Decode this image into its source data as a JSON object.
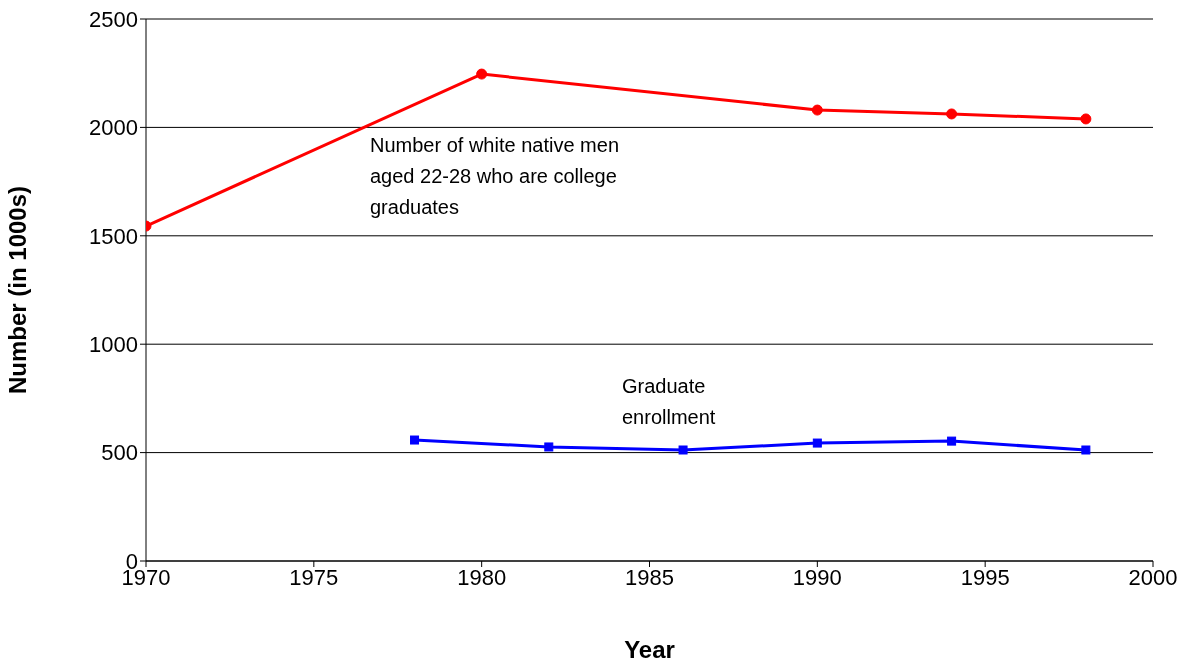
{
  "chart_data": {
    "type": "line",
    "xlabel": "Year",
    "ylabel": "Number (in 1000s)",
    "xlim": [
      1970,
      2000
    ],
    "xticks": [
      1970,
      1975,
      1980,
      1985,
      1990,
      1995,
      2000
    ],
    "ylim": [
      0,
      2500
    ],
    "yticks": [
      0,
      500,
      1000,
      1500,
      2000,
      2500
    ],
    "grid": "y",
    "line_style": "solid",
    "series": [
      {
        "name": "Number of white native men aged 22-28 who are college graduates",
        "color": "#ff0000",
        "marker": "circle",
        "x": [
          1970,
          1980,
          1990,
          1994,
          1998
        ],
        "values": [
          1545,
          2246,
          2080,
          2062,
          2039
        ]
      },
      {
        "name": "Graduate enrollment",
        "color": "#0000ff",
        "marker": "square",
        "x": [
          1978,
          1982,
          1986,
          1990,
          1994,
          1998
        ],
        "values": [
          558,
          526,
          512,
          544,
          553,
          512
        ]
      }
    ]
  }
}
